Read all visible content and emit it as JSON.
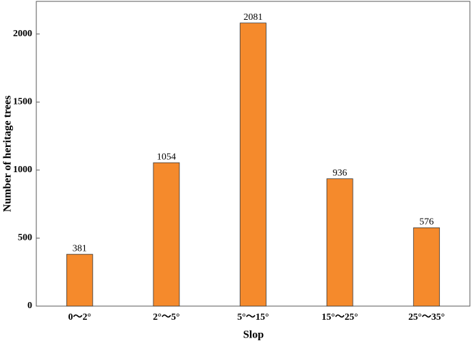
{
  "chart_data": {
    "type": "bar",
    "x_label": "Slop",
    "y_label": "Number of heritage trees",
    "categories": [
      "0～2°",
      "2°～5°",
      "5°～15°",
      "15°～25°",
      "25°～35°"
    ],
    "values": [
      381,
      1054,
      2081,
      936,
      576
    ],
    "color": "#f58a2c",
    "ylim": [
      0,
      2240
    ],
    "yticks": [
      0,
      500,
      1000,
      1500,
      2000
    ],
    "grid": false
  }
}
